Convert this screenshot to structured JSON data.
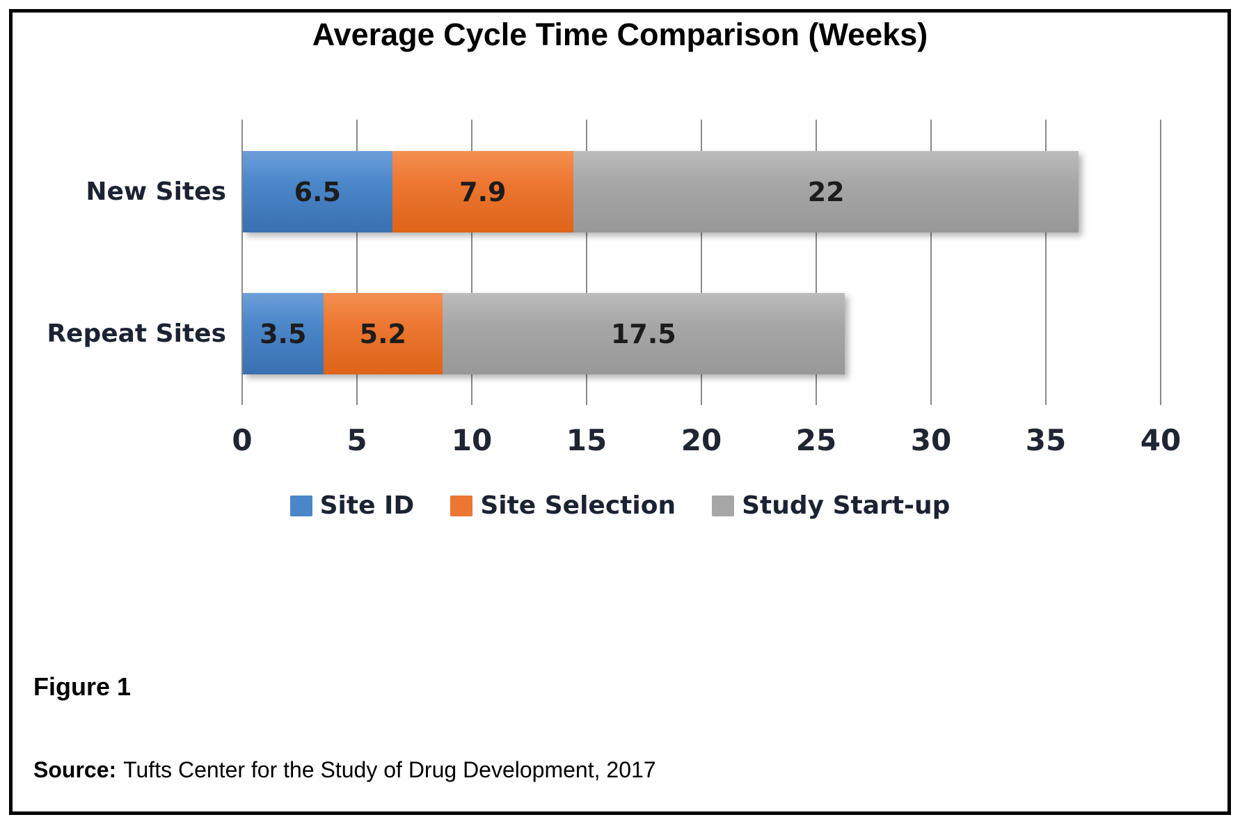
{
  "title": "Average Cycle Time Comparison (Weeks)",
  "figure_label": "Figure 1",
  "source_label": "Source:",
  "source_text": "Tufts Center for the Study of Drug Development, 2017",
  "chart_data": {
    "type": "bar",
    "orientation": "horizontal",
    "stacked": true,
    "title": "Average Cycle Time Comparison (Weeks)",
    "categories": [
      "New Sites",
      "Repeat Sites"
    ],
    "series": [
      {
        "name": "Site ID",
        "values": [
          6.5,
          3.5
        ],
        "color": "#4a86c9",
        "color_top": "#6d9fd9",
        "color_bottom": "#3a70b0"
      },
      {
        "name": "Site Selection",
        "values": [
          7.9,
          5.2
        ],
        "color": "#ed7631",
        "color_top": "#f39050",
        "color_bottom": "#dd6418"
      },
      {
        "name": "Study Start-up",
        "values": [
          22,
          17.5
        ],
        "color": "#a6a6a6",
        "color_top": "#bcbcbc",
        "color_bottom": "#989898"
      }
    ],
    "xlim": [
      0,
      40
    ],
    "xticks": [
      0,
      5,
      10,
      15,
      20,
      25,
      30,
      35,
      40
    ],
    "xlabel": "",
    "ylabel": "",
    "grid": true,
    "legend_position": "bottom",
    "gridline_color": "#8a8a8a"
  }
}
